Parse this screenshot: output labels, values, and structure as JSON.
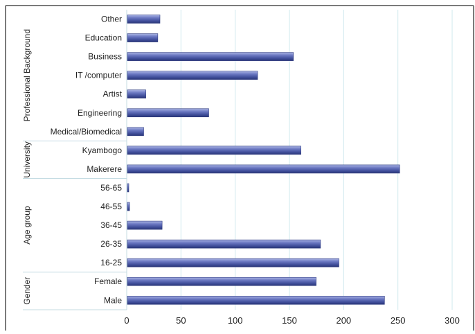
{
  "chart_data": {
    "type": "bar",
    "orientation": "horizontal",
    "title": "",
    "xlabel": "",
    "ylabel": "",
    "xlim": [
      0,
      300
    ],
    "x_ticks": [
      "0",
      "50",
      "100",
      "150",
      "200",
      "250",
      "300"
    ],
    "grid": true,
    "legend": "none",
    "bar_color": "#4a5aa6",
    "groups": [
      {
        "name": "Professional Background",
        "items": [
          {
            "label": "Other",
            "value": 30
          },
          {
            "label": "Education",
            "value": 28
          },
          {
            "label": "Business",
            "value": 153
          },
          {
            "label": "IT /computer",
            "value": 120
          },
          {
            "label": "Artist",
            "value": 17
          },
          {
            "label": "Engineering",
            "value": 75
          },
          {
            "label": "Medical/Biomedical",
            "value": 15
          }
        ]
      },
      {
        "name": "University",
        "items": [
          {
            "label": "Kyambogo",
            "value": 160
          },
          {
            "label": "Makerere",
            "value": 251
          }
        ]
      },
      {
        "name": "Age group",
        "items": [
          {
            "label": "56-65",
            "value": 1
          },
          {
            "label": "46-55",
            "value": 2
          },
          {
            "label": "36-45",
            "value": 32
          },
          {
            "label": "26-35",
            "value": 178
          },
          {
            "label": "16-25",
            "value": 195
          }
        ]
      },
      {
        "name": "Gender",
        "items": [
          {
            "label": "Female",
            "value": 174
          },
          {
            "label": "Male",
            "value": 237
          }
        ]
      }
    ]
  }
}
